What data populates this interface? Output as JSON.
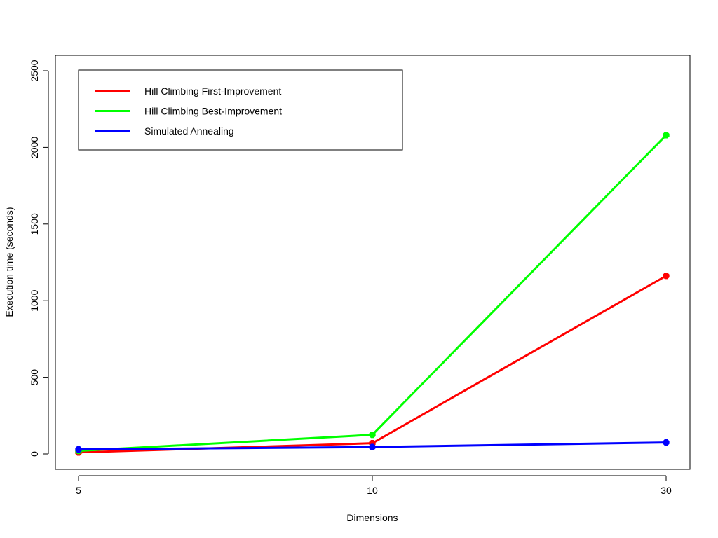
{
  "chart_data": {
    "type": "line",
    "xlabel": "Dimensions",
    "ylabel": "Execution time (seconds)",
    "categories": [
      "5",
      "10",
      "30"
    ],
    "y_ticks": [
      0,
      500,
      1000,
      1500,
      2000,
      2500
    ],
    "ylim": [
      -100,
      2600
    ],
    "grid": false,
    "legend_position": "top-left",
    "series": [
      {
        "name": "Hill Climbing First-Improvement",
        "color": "#ff0000",
        "values": [
          10,
          70,
          1162
        ]
      },
      {
        "name": "Hill Climbing Best-Improvement",
        "color": "#00ff00",
        "values": [
          20,
          125,
          2080
        ]
      },
      {
        "name": "Simulated Annealing",
        "color": "#0000ff",
        "values": [
          30,
          45,
          75
        ]
      }
    ]
  }
}
